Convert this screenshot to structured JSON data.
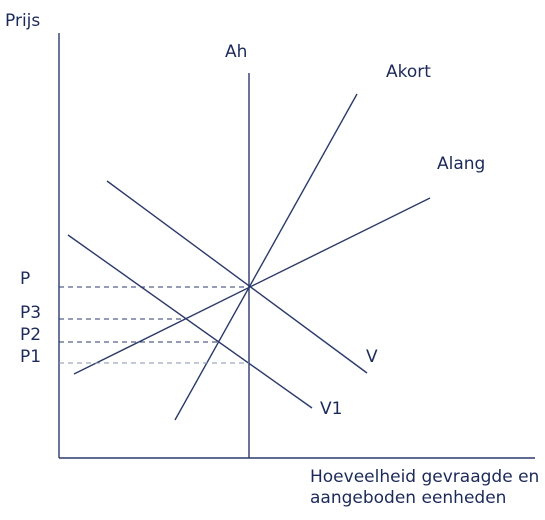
{
  "axes": {
    "y_label": "Prijs",
    "x_label_line1": "Hoeveelheid gevraagde en",
    "x_label_line2": "aangeboden eenheden"
  },
  "curves": {
    "ah": "Ah",
    "akort": "Akort",
    "alang": "Alang",
    "v": "V",
    "v1": "V1"
  },
  "price_labels": {
    "p": "P",
    "p3": "P3",
    "p2": "P2",
    "p1": "P1"
  },
  "colors": {
    "ink": "#1c2a5a"
  }
}
